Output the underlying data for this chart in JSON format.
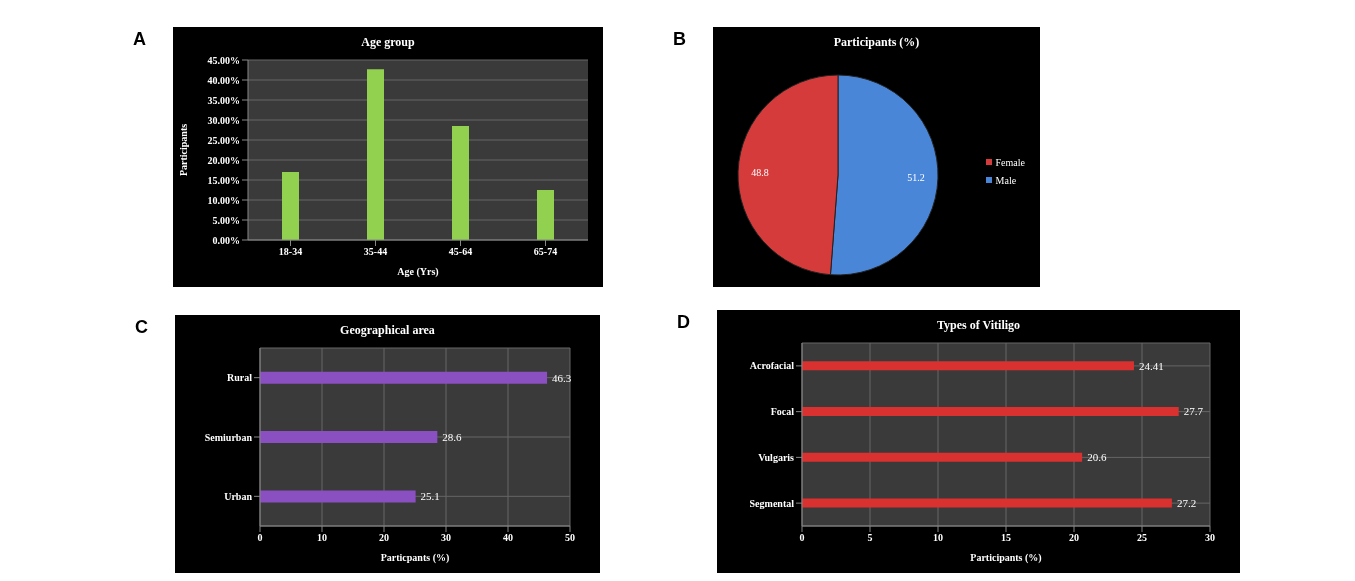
{
  "chart_data": [
    {
      "type": "bar",
      "title": "Age group",
      "xlabel": "Age (Yrs)",
      "ylabel": "Participants",
      "annotations": [
        "A"
      ],
      "categories": [
        "18-34",
        "35-44",
        "45-64",
        "65-74"
      ],
      "values": [
        17.0,
        42.7,
        28.5,
        12.5
      ],
      "color": "#92d050",
      "ylim": [
        0,
        45
      ],
      "yticks": [
        {
          "value": 0,
          "label": "0.00%"
        },
        {
          "value": 5,
          "label": "5.00%"
        },
        {
          "value": 10,
          "label": "10.00%"
        },
        {
          "value": 15,
          "label": "15.00%"
        },
        {
          "value": 20,
          "label": "20.00%"
        },
        {
          "value": 25,
          "label": "25.00%"
        },
        {
          "value": 30,
          "label": "30.00%"
        },
        {
          "value": 35,
          "label": "35.00%"
        },
        {
          "value": 40,
          "label": "40.00%"
        },
        {
          "value": 45,
          "label": "45.00%"
        }
      ],
      "grid": "y"
    },
    {
      "type": "pie",
      "title": "Participants (%)",
      "annotations": [
        "B"
      ],
      "categories": [
        "Male",
        "Female"
      ],
      "values": [
        51.2,
        48.8
      ],
      "colors": [
        "#4a86d8",
        "#d63b3b"
      ],
      "data_labels": true,
      "legend": "right"
    },
    {
      "type": "bar",
      "orientation": "horizontal",
      "title": "Geographical area",
      "xlabel": "Particpants (%)",
      "annotations": [
        "C"
      ],
      "categories": [
        "Rural",
        "Semiurban",
        "Urban"
      ],
      "values": [
        46.3,
        28.6,
        25.1
      ],
      "color": "#8a4fc1",
      "xlim": [
        0,
        50
      ],
      "xticks": [
        0,
        10,
        20,
        30,
        40,
        50
      ],
      "grid": true,
      "data_labels": true
    },
    {
      "type": "bar",
      "orientation": "horizontal",
      "title": "Types of Vitiligo",
      "xlabel": "Participants (%)",
      "annotations": [
        "D"
      ],
      "categories": [
        "Acrofacial",
        "Focal",
        "Vulgaris",
        "Segmental"
      ],
      "values": [
        24.41,
        27.7,
        20.6,
        27.2
      ],
      "color": "#d9312f",
      "xlim": [
        0,
        30
      ],
      "xticks": [
        0,
        5,
        10,
        15,
        20,
        25,
        30
      ],
      "grid": true,
      "data_labels": true
    }
  ]
}
